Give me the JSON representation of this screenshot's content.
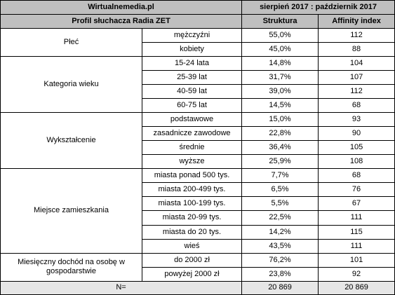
{
  "header": {
    "source": "Wirtualnemedia.pl",
    "period": "sierpień 2017 : październik 2017",
    "profile_title": "Profil słuchacza Radia ZET",
    "col_struktura": "Struktura",
    "col_affinity": "Affinity index"
  },
  "groups": [
    {
      "label": "Płeć",
      "rows": [
        {
          "category": "mężczyźni",
          "struktura": "55,0%",
          "affinity": "112"
        },
        {
          "category": "kobiety",
          "struktura": "45,0%",
          "affinity": "88"
        }
      ]
    },
    {
      "label": "Kategoria wieku",
      "rows": [
        {
          "category": "15-24 lata",
          "struktura": "14,8%",
          "affinity": "104"
        },
        {
          "category": "25-39 lat",
          "struktura": "31,7%",
          "affinity": "107"
        },
        {
          "category": "40-59 lat",
          "struktura": "39,0%",
          "affinity": "112"
        },
        {
          "category": "60-75 lat",
          "struktura": "14,5%",
          "affinity": "68"
        }
      ]
    },
    {
      "label": "Wykształcenie",
      "rows": [
        {
          "category": "podstawowe",
          "struktura": "15,0%",
          "affinity": "93"
        },
        {
          "category": "zasadnicze zawodowe",
          "struktura": "22,8%",
          "affinity": "90"
        },
        {
          "category": "średnie",
          "struktura": "36,4%",
          "affinity": "105"
        },
        {
          "category": "wyższe",
          "struktura": "25,9%",
          "affinity": "108"
        }
      ]
    },
    {
      "label": "Miejsce zamieszkania",
      "rows": [
        {
          "category": "miasta ponad 500 tys.",
          "struktura": "7,7%",
          "affinity": "68"
        },
        {
          "category": "miasta 200-499 tys.",
          "struktura": "6,5%",
          "affinity": "76"
        },
        {
          "category": "miasta 100-199 tys.",
          "struktura": "5,5%",
          "affinity": "67"
        },
        {
          "category": "miasta 20-99 tys.",
          "struktura": "22,5%",
          "affinity": "111"
        },
        {
          "category": "miasta do 20 tys.",
          "struktura": "14,2%",
          "affinity": "115"
        },
        {
          "category": "wieś",
          "struktura": "43,5%",
          "affinity": "111"
        }
      ]
    },
    {
      "label": "Miesięczny dochód na osobę w gospodarstwie",
      "rows": [
        {
          "category": "do 2000 zł",
          "struktura": "76,2%",
          "affinity": "101"
        },
        {
          "category": "powyżej 2000 zł",
          "struktura": "23,8%",
          "affinity": "92"
        }
      ]
    }
  ],
  "footer": {
    "label": "N=",
    "struktura": "20 869",
    "affinity": "20 869"
  },
  "colors": {
    "header_bg": "#bfbfbf",
    "footer_bg": "#e6e6e6",
    "border": "#000000"
  }
}
